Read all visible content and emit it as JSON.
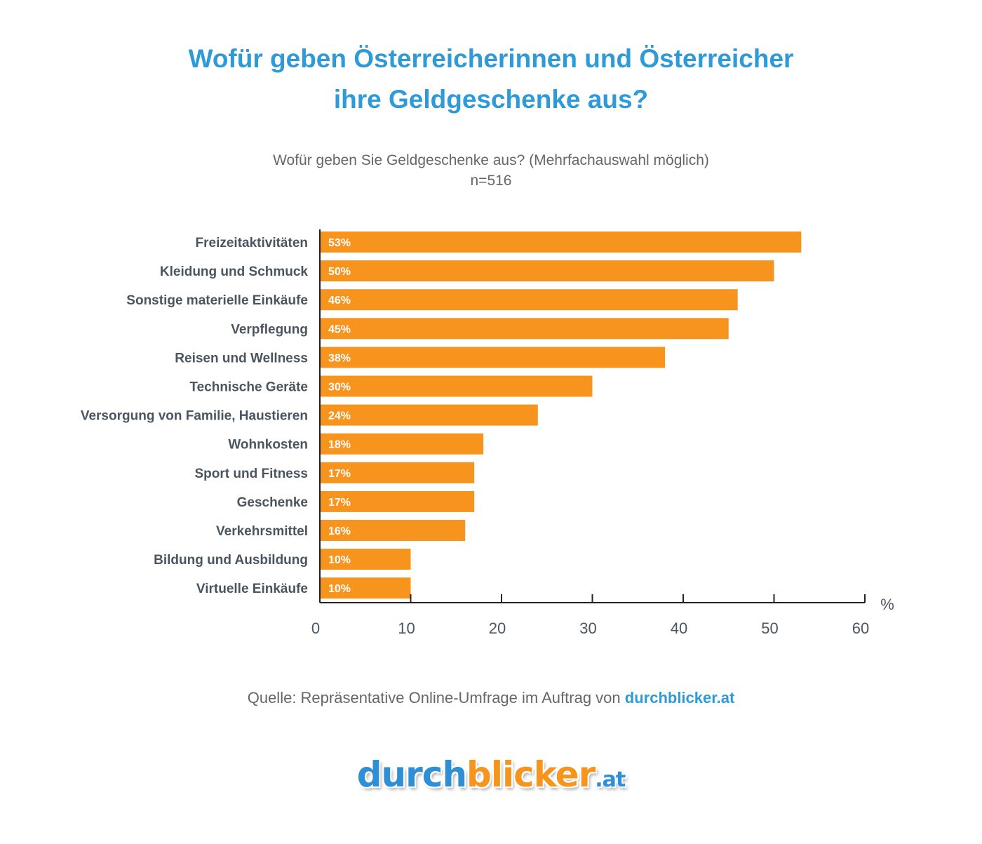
{
  "header": {
    "title_line1": "Wofür geben Österreicherinnen und Österreicher",
    "title_line2": "ihre Geldgeschenke aus?",
    "question": "Wofür geben Sie Geldgeschenke aus? (Mehrfachauswahl möglich)",
    "sample": "n=516"
  },
  "chart_data": {
    "type": "bar",
    "orientation": "horizontal",
    "categories": [
      "Freizeitaktivitäten",
      "Kleidung und Schmuck",
      "Sonstige materielle Einkäufe",
      "Verpflegung",
      "Reisen und Wellness",
      "Technische Geräte",
      "Versorgung von Familie, Haustieren",
      "Wohnkosten",
      "Sport und Fitness",
      "Geschenke",
      "Verkehrsmittel",
      "Bildung und Ausbildung",
      "Virtuelle Einkäufe"
    ],
    "values": [
      53,
      50,
      46,
      45,
      38,
      30,
      24,
      18,
      17,
      17,
      16,
      10,
      10
    ],
    "value_labels": [
      "53%",
      "50%",
      "46%",
      "45%",
      "38%",
      "30%",
      "24%",
      "18%",
      "17%",
      "17%",
      "16%",
      "10%",
      "10%"
    ],
    "xlim": [
      0,
      60
    ],
    "xticks": [
      0,
      10,
      20,
      30,
      40,
      50,
      60
    ],
    "x_unit": "%",
    "bar_color": "#f7941d",
    "grid": false
  },
  "footer": {
    "source_prefix": "Quelle: Repräsentative Online-Umfrage im Auftrag von ",
    "source_link": "durchblicker.at"
  },
  "logo": {
    "part1": "durch",
    "part2": "blicker",
    "part3": ".at"
  },
  "colors": {
    "accent_blue": "#2e9ad8",
    "bar_orange": "#f7941d",
    "label_gray": "#4a5560"
  }
}
